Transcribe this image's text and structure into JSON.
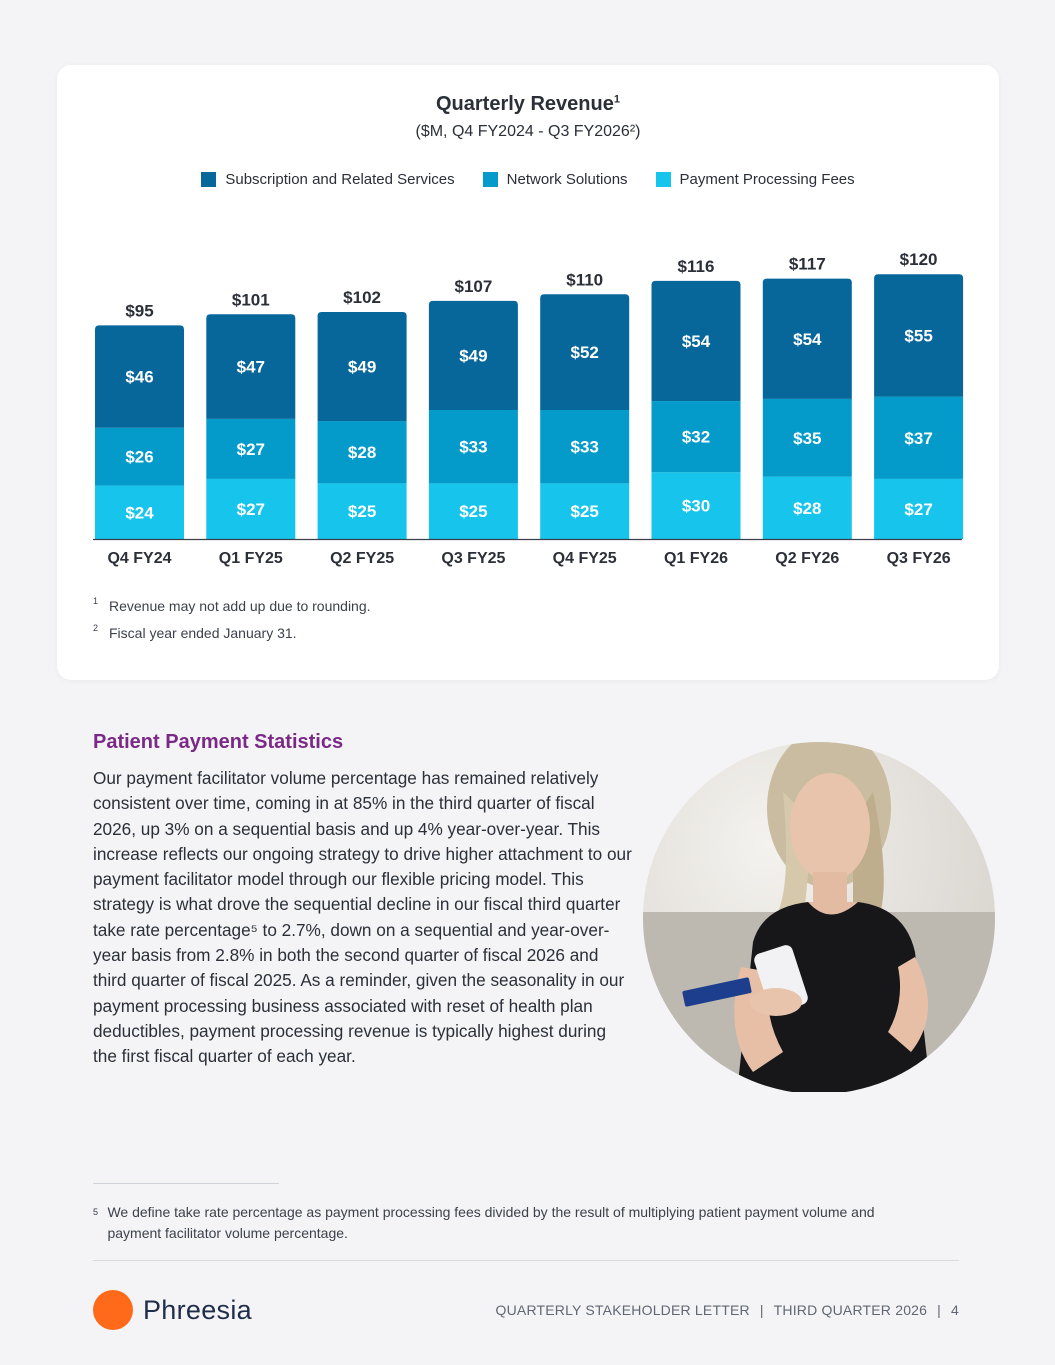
{
  "chart_data": {
    "type": "bar",
    "stacked": true,
    "title": "Quarterly Revenue",
    "title_sup": "1",
    "subtitle": "($M, Q4 FY2024 - Q3 FY2026²)",
    "categories": [
      "Q4 FY24",
      "Q1 FY25",
      "Q2 FY25",
      "Q3 FY25",
      "Q4 FY25",
      "Q1 FY26",
      "Q2 FY26",
      "Q3 FY26"
    ],
    "series": [
      {
        "name": "Subscription and Related Services",
        "color": "#08679a",
        "values": [
          46,
          47,
          49,
          49,
          52,
          54,
          54,
          55
        ],
        "labels": [
          "$46",
          "$47",
          "$49",
          "$49",
          "$52",
          "$54",
          "$54",
          "$55"
        ]
      },
      {
        "name": "Network Solutions",
        "color": "#049bca",
        "values": [
          26,
          27,
          28,
          33,
          33,
          32,
          35,
          37
        ],
        "labels": [
          "$26",
          "$27",
          "$28",
          "$33",
          "$33",
          "$32",
          "$35",
          "$37"
        ]
      },
      {
        "name": "Payment Processing Fees",
        "color": "#16c4ec",
        "values": [
          24,
          27,
          25,
          25,
          25,
          30,
          28,
          27
        ],
        "labels": [
          "$24",
          "$27",
          "$25",
          "$25",
          "$25",
          "$30",
          "$28",
          "$27"
        ]
      }
    ],
    "totals": [
      95,
      101,
      102,
      107,
      110,
      116,
      117,
      120
    ],
    "total_labels": [
      "$95",
      "$101",
      "$102",
      "$107",
      "$110",
      "$116",
      "$117",
      "$120"
    ],
    "ylim": [
      0,
      125
    ],
    "legend_position": "top",
    "grid": false
  },
  "footnotes": [
    {
      "mark": "1",
      "text": "Revenue may not add up due to rounding."
    },
    {
      "mark": "2",
      "text": "Fiscal year ended January 31."
    }
  ],
  "section": {
    "title": "Patient Payment Statistics",
    "body": "Our payment facilitator volume percentage has remained relatively consistent over time, coming in at 85% in the third quarter of fiscal 2026, up 3% on a sequential basis and up 4% year-over-year. This increase reflects our ongoing strategy to drive higher attachment to our payment facilitator model through our flexible pricing model. This strategy is what drove the sequential decline in our fiscal third quarter take rate percentage⁵ to 2.7%, down on a sequential and year-over-year basis from 2.8% in both the second quarter of fiscal 2026 and third quarter of fiscal 2025. As a reminder, given the seasonality in our payment processing business associated with reset of health plan deductibles, payment processing revenue is typically highest during the first fiscal quarter of each year."
  },
  "bottom_footnote": {
    "mark": "5",
    "text": "We define take rate percentage as payment processing fees divided by the result of multiplying patient payment volume and payment facilitator volume percentage."
  },
  "footer": {
    "logo_text": "Phreesia",
    "left": "QUARTERLY STAKEHOLDER LETTER",
    "middle": "THIRD QUARTER 2026",
    "page": "4"
  }
}
